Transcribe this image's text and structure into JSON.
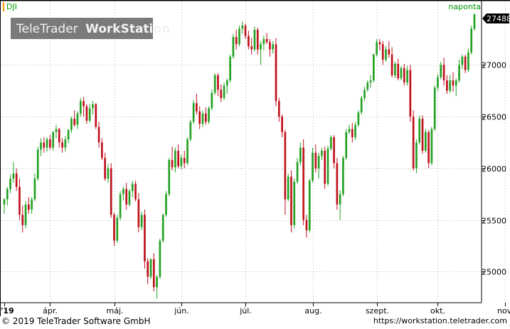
{
  "symbol": "DJI",
  "interval": "naponta",
  "logo_text_1": "TeleTrader",
  "logo_text_2": "WorkStation",
  "last_price": "27488",
  "footer_left": "© 2019 TeleTrader Software GmbH",
  "footer_right": "https://workstation.teletrader.com",
  "colors": {
    "up": "#22a022",
    "down": "#c0101a",
    "grid": "#b0b0b0",
    "accent": "#ff9900",
    "label": "#009900"
  },
  "chart_data": {
    "type": "candlestick",
    "title": "DJI",
    "ylim": [
      24700,
      27600
    ],
    "yticks": [
      25000,
      25500,
      26000,
      26500,
      27000
    ],
    "xticks": [
      "'19",
      "ápr.",
      "máj.",
      "jún.",
      "júl.",
      "aug.",
      "szept.",
      "okt.",
      "nov."
    ],
    "xtick_index": [
      0,
      15,
      36,
      58,
      79,
      101,
      122,
      142,
      164
    ],
    "grid": true,
    "candles": [
      [
        25650,
        25710,
        25560,
        25700
      ],
      [
        25700,
        25820,
        25640,
        25800
      ],
      [
        25800,
        25940,
        25760,
        25900
      ],
      [
        25900,
        26060,
        25860,
        25950
      ],
      [
        25950,
        26000,
        25780,
        25820
      ],
      [
        25820,
        25900,
        25500,
        25550
      ],
      [
        25550,
        25640,
        25380,
        25450
      ],
      [
        25450,
        25680,
        25420,
        25650
      ],
      [
        25650,
        25720,
        25560,
        25600
      ],
      [
        25600,
        25720,
        25560,
        25700
      ],
      [
        25700,
        25950,
        25680,
        25900
      ],
      [
        25900,
        26210,
        25880,
        26180
      ],
      [
        26180,
        26290,
        26120,
        26250
      ],
      [
        26250,
        26300,
        26150,
        26200
      ],
      [
        26200,
        26300,
        26160,
        26280
      ],
      [
        26280,
        26320,
        26180,
        26200
      ],
      [
        26200,
        26360,
        26170,
        26350
      ],
      [
        26350,
        26420,
        26290,
        26380
      ],
      [
        26380,
        26390,
        26200,
        26250
      ],
      [
        26250,
        26290,
        26150,
        26200
      ],
      [
        26200,
        26310,
        26160,
        26280
      ],
      [
        26280,
        26380,
        26240,
        26370
      ],
      [
        26370,
        26500,
        26340,
        26480
      ],
      [
        26480,
        26560,
        26400,
        26420
      ],
      [
        26420,
        26550,
        26380,
        26530
      ],
      [
        26530,
        26680,
        26500,
        26650
      ],
      [
        26650,
        26690,
        26500,
        26600
      ],
      [
        26600,
        26620,
        26430,
        26460
      ],
      [
        26460,
        26620,
        26440,
        26580
      ],
      [
        26580,
        26650,
        26520,
        26620
      ],
      [
        26620,
        26630,
        26380,
        26400
      ],
      [
        26400,
        26450,
        26200,
        26250
      ],
      [
        26250,
        26290,
        26080,
        26100
      ],
      [
        26100,
        26150,
        25880,
        25900
      ],
      [
        25900,
        26040,
        25860,
        26000
      ],
      [
        26000,
        26050,
        25520,
        25550
      ],
      [
        25550,
        25570,
        25250,
        25300
      ],
      [
        25300,
        25550,
        25280,
        25520
      ],
      [
        25520,
        25780,
        25500,
        25750
      ],
      [
        25750,
        25820,
        25690,
        25800
      ],
      [
        25800,
        25860,
        25600,
        25650
      ],
      [
        25650,
        25800,
        25630,
        25780
      ],
      [
        25780,
        25880,
        25720,
        25850
      ],
      [
        25850,
        25880,
        25680,
        25700
      ],
      [
        25700,
        25760,
        25380,
        25430
      ],
      [
        25430,
        25580,
        25400,
        25550
      ],
      [
        25550,
        25600,
        25030,
        25100
      ],
      [
        25100,
        25130,
        24880,
        24950
      ],
      [
        24950,
        25130,
        24930,
        25120
      ],
      [
        25120,
        25180,
        24810,
        24850
      ],
      [
        24850,
        24970,
        24740,
        24950
      ],
      [
        24950,
        25320,
        24930,
        25300
      ],
      [
        25300,
        25560,
        25280,
        25550
      ],
      [
        25550,
        25780,
        25530,
        25750
      ],
      [
        25750,
        26100,
        25730,
        26080
      ],
      [
        26080,
        26210,
        25980,
        26010
      ],
      [
        26010,
        26200,
        25960,
        26170
      ],
      [
        26170,
        26230,
        26000,
        26020
      ],
      [
        26020,
        26130,
        25990,
        26100
      ],
      [
        26100,
        26170,
        26000,
        26050
      ],
      [
        26050,
        26300,
        26030,
        26280
      ],
      [
        26280,
        26470,
        26260,
        26450
      ],
      [
        26450,
        26660,
        26430,
        26630
      ],
      [
        26630,
        26720,
        26520,
        26550
      ],
      [
        26550,
        26600,
        26380,
        26430
      ],
      [
        26430,
        26560,
        26400,
        26530
      ],
      [
        26530,
        26590,
        26420,
        26450
      ],
      [
        26450,
        26600,
        26430,
        26580
      ],
      [
        26580,
        26760,
        26560,
        26730
      ],
      [
        26730,
        26920,
        26710,
        26900
      ],
      [
        26900,
        26920,
        26700,
        26760
      ],
      [
        26760,
        26810,
        26640,
        26680
      ],
      [
        26680,
        26830,
        26660,
        26800
      ],
      [
        26800,
        26870,
        26720,
        26850
      ],
      [
        26850,
        27100,
        26830,
        27080
      ],
      [
        27080,
        27300,
        27060,
        27270
      ],
      [
        27270,
        27340,
        27150,
        27200
      ],
      [
        27200,
        27380,
        27180,
        27350
      ],
      [
        27350,
        27420,
        27300,
        27380
      ],
      [
        27380,
        27400,
        27250,
        27280
      ],
      [
        27280,
        27330,
        27150,
        27180
      ],
      [
        27180,
        27260,
        27100,
        27150
      ],
      [
        27150,
        27370,
        27130,
        27340
      ],
      [
        27340,
        27360,
        27100,
        27150
      ],
      [
        27150,
        27230,
        27000,
        27200
      ],
      [
        27200,
        27280,
        27140,
        27250
      ],
      [
        27250,
        27310,
        27200,
        27220
      ],
      [
        27220,
        27250,
        27080,
        27150
      ],
      [
        27150,
        27230,
        27110,
        27200
      ],
      [
        27200,
        27260,
        26600,
        26650
      ],
      [
        26650,
        26680,
        26450,
        26500
      ],
      [
        26500,
        26520,
        26300,
        26350
      ],
      [
        26350,
        26370,
        25550,
        25700
      ],
      [
        25700,
        25950,
        25680,
        25920
      ],
      [
        25920,
        25980,
        25380,
        25450
      ],
      [
        25450,
        25900,
        25420,
        25870
      ],
      [
        25870,
        26100,
        25850,
        26060
      ],
      [
        26060,
        26250,
        26030,
        26200
      ],
      [
        26200,
        26280,
        25450,
        25500
      ],
      [
        25500,
        25550,
        25330,
        25400
      ],
      [
        25400,
        25900,
        25380,
        25880
      ],
      [
        25880,
        26200,
        25860,
        26150
      ],
      [
        26150,
        26230,
        25960,
        26000
      ],
      [
        26000,
        26150,
        25900,
        26120
      ],
      [
        26120,
        26200,
        26080,
        26170
      ],
      [
        26170,
        26210,
        25800,
        25850
      ],
      [
        25850,
        26220,
        25830,
        26190
      ],
      [
        26190,
        26320,
        26170,
        26300
      ],
      [
        26300,
        26320,
        26000,
        26050
      ],
      [
        26050,
        26100,
        25600,
        25650
      ],
      [
        25650,
        25790,
        25500,
        25750
      ],
      [
        25750,
        26120,
        25730,
        26100
      ],
      [
        26100,
        26380,
        26080,
        26350
      ],
      [
        26350,
        26420,
        26330,
        26380
      ],
      [
        26380,
        26440,
        26250,
        26300
      ],
      [
        26300,
        26450,
        26270,
        26420
      ],
      [
        26420,
        26560,
        26400,
        26540
      ],
      [
        26540,
        26700,
        26520,
        26680
      ],
      [
        26680,
        26790,
        26650,
        26760
      ],
      [
        26760,
        26850,
        26740,
        26830
      ],
      [
        26830,
        26900,
        26780,
        26850
      ],
      [
        26850,
        27110,
        26830,
        27100
      ],
      [
        27100,
        27250,
        27080,
        27220
      ],
      [
        27220,
        27250,
        27140,
        27200
      ],
      [
        27200,
        27230,
        27000,
        27050
      ],
      [
        27050,
        27180,
        27030,
        27150
      ],
      [
        27150,
        27230,
        27070,
        27100
      ],
      [
        27100,
        27170,
        26880,
        26900
      ],
      [
        26900,
        27030,
        26870,
        27010
      ],
      [
        27010,
        27060,
        26850,
        26870
      ],
      [
        26870,
        26990,
        26850,
        26970
      ],
      [
        26970,
        27010,
        26800,
        26830
      ],
      [
        26830,
        26990,
        26800,
        26950
      ],
      [
        26950,
        27000,
        26450,
        26500
      ],
      [
        26500,
        26560,
        25980,
        26000
      ],
      [
        26000,
        26280,
        25950,
        26250
      ],
      [
        26250,
        26510,
        26230,
        26480
      ],
      [
        26480,
        26510,
        26140,
        26170
      ],
      [
        26170,
        26380,
        26150,
        26350
      ],
      [
        26350,
        26370,
        26000,
        26050
      ],
      [
        26050,
        26400,
        26030,
        26380
      ],
      [
        26380,
        26800,
        26360,
        26780
      ],
      [
        26780,
        26910,
        26750,
        26880
      ],
      [
        26880,
        27030,
        26860,
        27000
      ],
      [
        27000,
        27070,
        26800,
        26850
      ],
      [
        26850,
        26900,
        26720,
        26750
      ],
      [
        26750,
        26900,
        26730,
        26850
      ],
      [
        26850,
        26930,
        26740,
        26800
      ],
      [
        26800,
        26870,
        26700,
        26850
      ],
      [
        26850,
        27050,
        26830,
        27000
      ],
      [
        27000,
        27100,
        26960,
        27080
      ],
      [
        27080,
        27100,
        26920,
        26950
      ],
      [
        26950,
        27160,
        26930,
        27120
      ],
      [
        27120,
        27380,
        27100,
        27350
      ],
      [
        27350,
        27500,
        27330,
        27488
      ]
    ]
  }
}
